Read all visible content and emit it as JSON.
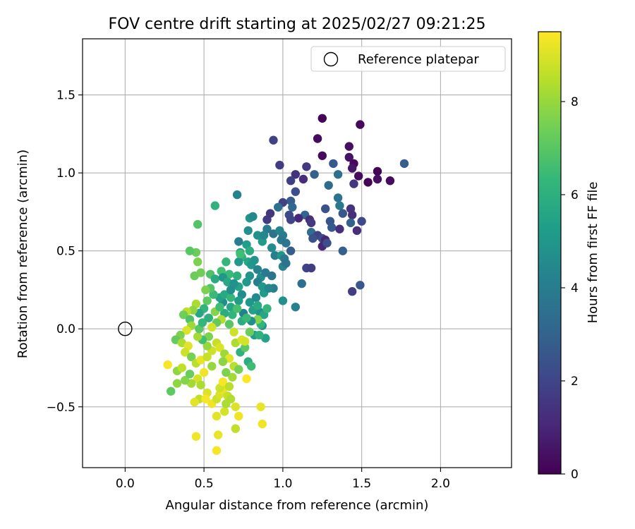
{
  "chart_data": {
    "type": "scatter",
    "title": "FOV centre drift starting at 2025/02/27 09:21:25",
    "xlabel": "Angular distance from reference (arcmin)",
    "ylabel": "Rotation from reference (arcmin)",
    "xlim": [
      -0.27,
      2.45
    ],
    "ylim": [
      -0.89,
      1.86
    ],
    "x_ticks": [
      0.0,
      0.5,
      1.0,
      1.5,
      2.0
    ],
    "x_tick_labels": [
      "0.0",
      "0.5",
      "1.0",
      "1.5",
      "2.0"
    ],
    "y_ticks": [
      -0.5,
      0.0,
      0.5,
      1.0,
      1.5
    ],
    "y_tick_labels": [
      "−0.5",
      "0.0",
      "0.5",
      "1.0",
      "1.5"
    ],
    "grid": true,
    "legend": {
      "position": "top-right",
      "entries": [
        "Reference platepar"
      ]
    },
    "reference_point": {
      "x": 0.0,
      "y": 0.0,
      "marker": "open-circle"
    },
    "colorbar": {
      "label": "Hours from first FF file",
      "range": [
        0,
        9.5
      ],
      "ticks": [
        0,
        2,
        4,
        6,
        8
      ],
      "tick_labels": [
        "0",
        "2",
        "4",
        "6",
        "8"
      ],
      "colormap": "viridis"
    },
    "colormap_stops": [
      "#440154",
      "#482878",
      "#3e4989",
      "#31688e",
      "#26828e",
      "#1f9e89",
      "#35b779",
      "#6ece58",
      "#b5de2b",
      "#fde725"
    ],
    "points": [
      [
        1.25,
        1.35,
        0.1
      ],
      [
        1.22,
        1.22,
        0.3
      ],
      [
        1.49,
        1.31,
        0.2
      ],
      [
        1.42,
        1.17,
        0.4
      ],
      [
        1.25,
        1.11,
        0.3
      ],
      [
        1.42,
        1.1,
        0.5
      ],
      [
        1.45,
        1.06,
        0.2
      ],
      [
        1.44,
        1.03,
        0.6
      ],
      [
        1.48,
        0.98,
        0.3
      ],
      [
        1.6,
        1.01,
        0.1
      ],
      [
        1.6,
        0.96,
        0.4
      ],
      [
        1.54,
        0.94,
        0.1
      ],
      [
        1.68,
        0.95,
        0.3
      ],
      [
        1.77,
        1.06,
        2.8
      ],
      [
        0.94,
        1.21,
        1.9
      ],
      [
        0.98,
        1.05,
        1.7
      ],
      [
        1.15,
        1.04,
        1.6
      ],
      [
        1.08,
        0.99,
        1.4
      ],
      [
        1.13,
        0.96,
        1.2
      ],
      [
        1.2,
        0.99,
        2.9
      ],
      [
        1.32,
        1.06,
        2.7
      ],
      [
        1.35,
        0.99,
        3.5
      ],
      [
        1.29,
        0.92,
        3.3
      ],
      [
        1.05,
        0.95,
        1.8
      ],
      [
        1.45,
        0.93,
        1.5
      ],
      [
        1.08,
        0.88,
        2.3
      ],
      [
        1.05,
        0.82,
        2.8
      ],
      [
        1.0,
        0.81,
        1.9
      ],
      [
        1.35,
        0.84,
        3.6
      ],
      [
        1.27,
        0.77,
        2.4
      ],
      [
        1.36,
        0.79,
        3.8
      ],
      [
        1.38,
        0.74,
        2.6
      ],
      [
        1.43,
        0.77,
        1.4
      ],
      [
        1.44,
        0.73,
        1.3
      ],
      [
        1.06,
        0.78,
        3.2
      ],
      [
        1.14,
        0.73,
        3.1
      ],
      [
        1.04,
        0.73,
        2.2
      ],
      [
        1.1,
        0.71,
        1.1
      ],
      [
        1.17,
        0.7,
        1.2
      ],
      [
        1.05,
        0.7,
        2.0
      ],
      [
        1.18,
        0.68,
        1.6
      ],
      [
        1.3,
        0.69,
        2.5
      ],
      [
        1.43,
        0.68,
        3.0
      ],
      [
        1.5,
        0.69,
        2.1
      ],
      [
        1.31,
        0.65,
        2.7
      ],
      [
        1.36,
        0.64,
        1.3
      ],
      [
        1.47,
        0.63,
        1.2
      ],
      [
        1.18,
        0.62,
        3.4
      ],
      [
        1.22,
        0.6,
        1.9
      ],
      [
        1.19,
        0.58,
        2.4
      ],
      [
        1.25,
        0.58,
        2.2
      ],
      [
        1.27,
        0.57,
        1.0
      ],
      [
        1.25,
        0.53,
        1.1
      ],
      [
        1.28,
        0.55,
        2.3
      ],
      [
        1.38,
        0.5,
        2.9
      ],
      [
        0.9,
        0.7,
        1.7
      ],
      [
        0.92,
        0.74,
        1.5
      ],
      [
        0.97,
        0.78,
        3.5
      ],
      [
        0.9,
        0.64,
        3.9
      ],
      [
        0.94,
        0.61,
        3.6
      ],
      [
        0.98,
        0.63,
        4.3
      ],
      [
        1.0,
        0.6,
        4.1
      ],
      [
        0.99,
        0.57,
        3.8
      ],
      [
        1.02,
        0.55,
        3.7
      ],
      [
        0.93,
        0.52,
        4.6
      ],
      [
        0.87,
        0.56,
        5.2
      ],
      [
        0.84,
        0.6,
        4.8
      ],
      [
        0.88,
        0.6,
        4.4
      ],
      [
        0.79,
        0.71,
        5.0
      ],
      [
        0.81,
        0.72,
        4.5
      ],
      [
        0.71,
        0.86,
        4.2
      ],
      [
        0.78,
        0.63,
        4.7
      ],
      [
        0.72,
        0.56,
        4.0
      ],
      [
        0.77,
        0.54,
        5.3
      ],
      [
        0.79,
        0.5,
        5.9
      ],
      [
        0.73,
        0.49,
        5.4
      ],
      [
        0.74,
        0.46,
        6.1
      ],
      [
        0.78,
        0.43,
        5.6
      ],
      [
        0.8,
        0.41,
        5.1
      ],
      [
        0.82,
        0.44,
        4.9
      ],
      [
        0.84,
        0.38,
        4.3
      ],
      [
        0.86,
        0.33,
        4.6
      ],
      [
        0.89,
        0.36,
        3.9
      ],
      [
        0.93,
        0.34,
        3.7
      ],
      [
        0.95,
        0.47,
        4.1
      ],
      [
        0.99,
        0.47,
        5.0
      ],
      [
        1.0,
        0.4,
        4.4
      ],
      [
        1.01,
        0.45,
        3.9
      ],
      [
        1.02,
        0.42,
        3.6
      ],
      [
        1.05,
        0.5,
        2.8
      ],
      [
        1.15,
        0.39,
        1.9
      ],
      [
        1.18,
        0.39,
        1.7
      ],
      [
        1.12,
        0.29,
        3.4
      ],
      [
        1.08,
        0.14,
        4.2
      ],
      [
        1.0,
        0.18,
        4.7
      ],
      [
        1.44,
        0.24,
        1.8
      ],
      [
        1.49,
        0.28,
        2.6
      ],
      [
        0.94,
        0.26,
        4.0
      ],
      [
        0.88,
        0.23,
        5.2
      ],
      [
        0.84,
        0.3,
        4.1
      ],
      [
        0.79,
        0.34,
        4.9
      ],
      [
        0.77,
        0.3,
        5.1
      ],
      [
        0.72,
        0.27,
        5.5
      ],
      [
        0.71,
        0.34,
        6.0
      ],
      [
        0.66,
        0.35,
        6.4
      ],
      [
        0.61,
        0.37,
        6.6
      ],
      [
        0.54,
        0.35,
        6.8
      ],
      [
        0.57,
        0.32,
        5.8
      ],
      [
        0.62,
        0.33,
        5.0
      ],
      [
        0.65,
        0.3,
        5.7
      ],
      [
        0.69,
        0.29,
        4.8
      ],
      [
        0.74,
        0.22,
        4.6
      ],
      [
        0.79,
        0.17,
        5.0
      ],
      [
        0.83,
        0.2,
        4.5
      ],
      [
        0.85,
        0.11,
        4.8
      ],
      [
        0.88,
        0.09,
        5.6
      ],
      [
        0.87,
        0.02,
        4.9
      ],
      [
        0.89,
        -0.06,
        5.5
      ],
      [
        0.82,
        -0.04,
        5.3
      ],
      [
        0.86,
        0.03,
        6.2
      ],
      [
        0.84,
        0.06,
        7.7
      ],
      [
        0.8,
        0.05,
        4.7
      ],
      [
        0.75,
        0.1,
        4.2
      ],
      [
        0.72,
        0.18,
        5.2
      ],
      [
        0.67,
        0.14,
        5.6
      ],
      [
        0.68,
        0.09,
        6.2
      ],
      [
        0.63,
        0.1,
        5.9
      ],
      [
        0.62,
        0.17,
        4.6
      ],
      [
        0.6,
        0.2,
        5.4
      ],
      [
        0.56,
        0.22,
        6.4
      ],
      [
        0.54,
        0.26,
        6.9
      ],
      [
        0.51,
        0.25,
        7.6
      ],
      [
        0.52,
        0.18,
        7.1
      ],
      [
        0.5,
        0.13,
        6.2
      ],
      [
        0.47,
        0.1,
        5.6
      ],
      [
        0.45,
        0.16,
        8.3
      ],
      [
        0.43,
        0.12,
        7.9
      ],
      [
        0.39,
        0.11,
        8.6
      ],
      [
        0.37,
        0.09,
        7.4
      ],
      [
        0.41,
        0.06,
        6.8
      ],
      [
        0.42,
        0.02,
        8.1
      ],
      [
        0.39,
        -0.01,
        9.0
      ],
      [
        0.35,
        -0.04,
        7.6
      ],
      [
        0.32,
        -0.07,
        7.2
      ],
      [
        0.36,
        -0.09,
        8.3
      ],
      [
        0.4,
        -0.11,
        9.1
      ],
      [
        0.38,
        -0.15,
        8.8
      ],
      [
        0.42,
        -0.18,
        7.5
      ],
      [
        0.45,
        -0.22,
        8.5
      ],
      [
        0.48,
        -0.2,
        9.2
      ],
      [
        0.52,
        -0.18,
        8.7
      ],
      [
        0.55,
        -0.24,
        8.0
      ],
      [
        0.5,
        -0.28,
        9.3
      ],
      [
        0.46,
        -0.32,
        8.9
      ],
      [
        0.42,
        -0.35,
        8.2
      ],
      [
        0.38,
        -0.33,
        7.7
      ],
      [
        0.33,
        -0.35,
        7.9
      ],
      [
        0.29,
        -0.4,
        7.1
      ],
      [
        0.27,
        -0.23,
        9.4
      ],
      [
        0.33,
        -0.27,
        7.9
      ],
      [
        0.36,
        -0.25,
        8.6
      ],
      [
        0.41,
        -0.29,
        7.3
      ],
      [
        0.48,
        -0.36,
        8.3
      ],
      [
        0.52,
        -0.41,
        9.0
      ],
      [
        0.47,
        -0.45,
        8.6
      ],
      [
        0.44,
        -0.47,
        9.1
      ],
      [
        0.51,
        -0.45,
        9.4
      ],
      [
        0.55,
        -0.48,
        9.3
      ],
      [
        0.58,
        -0.45,
        8.8
      ],
      [
        0.6,
        -0.42,
        9.0
      ],
      [
        0.62,
        -0.39,
        9.2
      ],
      [
        0.65,
        -0.43,
        8.7
      ],
      [
        0.67,
        -0.45,
        8.4
      ],
      [
        0.7,
        -0.5,
        9.0
      ],
      [
        0.63,
        -0.53,
        8.9
      ],
      [
        0.64,
        -0.48,
        8.3
      ],
      [
        0.58,
        -0.56,
        9.1
      ],
      [
        0.72,
        -0.56,
        9.3
      ],
      [
        0.59,
        -0.68,
        9.2
      ],
      [
        0.7,
        -0.64,
        8.6
      ],
      [
        0.58,
        -0.78,
        9.4
      ],
      [
        0.45,
        -0.69,
        9.3
      ],
      [
        0.86,
        -0.5,
        9.2
      ],
      [
        0.87,
        -0.61,
        9.3
      ],
      [
        0.77,
        -0.32,
        9.5
      ],
      [
        0.6,
        -0.38,
        8.8
      ],
      [
        0.62,
        -0.34,
        9.4
      ],
      [
        0.66,
        -0.37,
        8.5
      ],
      [
        0.68,
        -0.31,
        8.2
      ],
      [
        0.64,
        -0.28,
        7.6
      ],
      [
        0.69,
        -0.24,
        8.5
      ],
      [
        0.72,
        -0.26,
        7.5
      ],
      [
        0.78,
        -0.21,
        5.9
      ],
      [
        0.8,
        -0.24,
        6.5
      ],
      [
        0.73,
        -0.15,
        6.1
      ],
      [
        0.76,
        -0.12,
        7.1
      ],
      [
        0.7,
        -0.09,
        8.3
      ],
      [
        0.74,
        -0.07,
        9.0
      ],
      [
        0.76,
        -0.08,
        8.9
      ],
      [
        0.79,
        -0.02,
        7.3
      ],
      [
        0.69,
        -0.02,
        8.8
      ],
      [
        0.66,
        0.03,
        7.0
      ],
      [
        0.61,
        0.06,
        8.4
      ],
      [
        0.58,
        0.04,
        7.2
      ],
      [
        0.55,
        0.01,
        8.9
      ],
      [
        0.53,
        -0.05,
        7.6
      ],
      [
        0.58,
        -0.09,
        8.7
      ],
      [
        0.6,
        -0.12,
        9.0
      ],
      [
        0.63,
        -0.16,
        8.1
      ],
      [
        0.66,
        -0.19,
        9.1
      ],
      [
        0.62,
        -0.21,
        7.8
      ],
      [
        0.55,
        -0.14,
        8.8
      ],
      [
        0.52,
        -0.11,
        8.0
      ],
      [
        0.49,
        -0.07,
        6.6
      ],
      [
        0.46,
        -0.05,
        8.2
      ],
      [
        0.47,
        0.0,
        7.0
      ],
      [
        0.49,
        0.04,
        6.3
      ],
      [
        0.53,
        0.07,
        6.0
      ],
      [
        0.57,
        0.11,
        7.7
      ],
      [
        0.6,
        0.14,
        6.5
      ],
      [
        0.63,
        0.22,
        5.7
      ],
      [
        0.67,
        0.2,
        6.3
      ],
      [
        0.71,
        0.13,
        6.7
      ],
      [
        0.74,
        0.05,
        5.9
      ],
      [
        0.77,
        0.07,
        6.4
      ],
      [
        0.81,
        0.12,
        5.4
      ],
      [
        0.84,
        0.15,
        5.8
      ],
      [
        0.87,
        0.27,
        5.0
      ],
      [
        0.91,
        0.26,
        4.4
      ],
      [
        0.9,
        0.13,
        6.3
      ],
      [
        0.85,
        -0.04,
        6.1
      ],
      [
        0.64,
        0.43,
        6.3
      ],
      [
        0.72,
        0.43,
        5.1
      ],
      [
        0.67,
        0.25,
        4.7
      ],
      [
        0.73,
        0.48,
        6.6
      ],
      [
        0.57,
        0.79,
        6.1
      ],
      [
        0.46,
        0.67,
        6.9
      ],
      [
        0.45,
        0.49,
        7.3
      ],
      [
        0.41,
        0.5,
        7.0
      ],
      [
        0.46,
        0.43,
        7.6
      ],
      [
        0.44,
        0.34,
        7.3
      ],
      [
        0.48,
        0.36,
        7.4
      ]
    ]
  }
}
